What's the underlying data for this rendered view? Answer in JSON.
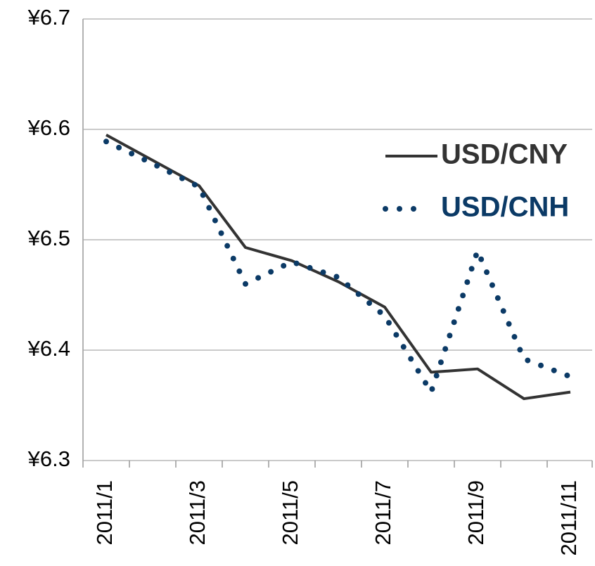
{
  "chart_data": {
    "type": "line",
    "categories": [
      "2011/1",
      null,
      "2011/3",
      null,
      "2011/5",
      null,
      "2011/7",
      null,
      "2011/9",
      null,
      "2011/11"
    ],
    "series": [
      {
        "name": "USD/CNY",
        "color": "#333333",
        "style": "solid",
        "values": [
          6.595,
          6.572,
          6.549,
          6.493,
          6.481,
          6.462,
          6.439,
          6.38,
          6.383,
          6.356,
          6.362
        ]
      },
      {
        "name": "USD/CNH",
        "color": "#0b3a66",
        "style": "dotted",
        "values": [
          6.589,
          6.569,
          6.548,
          6.46,
          6.48,
          6.466,
          6.431,
          6.362,
          6.49,
          6.392,
          6.376
        ]
      }
    ],
    "ylim": [
      6.3,
      6.7
    ],
    "yticks": [
      {
        "value": 6.3,
        "label": "¥6.3"
      },
      {
        "value": 6.4,
        "label": "¥6.4"
      },
      {
        "value": 6.5,
        "label": "¥6.5"
      },
      {
        "value": 6.6,
        "label": "¥6.6"
      },
      {
        "value": 6.7,
        "label": "¥6.7"
      }
    ],
    "grid": true,
    "legend": "right"
  }
}
